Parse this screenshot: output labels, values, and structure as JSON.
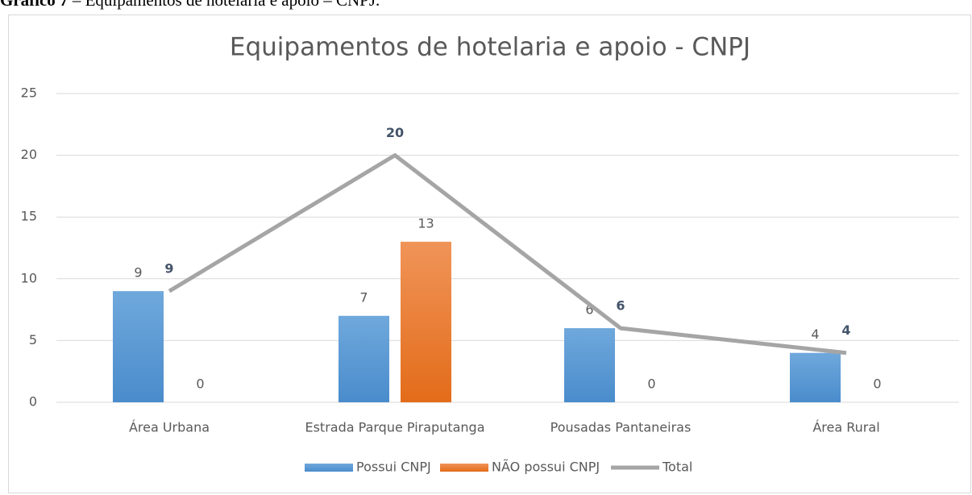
{
  "caption": {
    "label": "Gráfico 7",
    "text": "– Equipamentos de hotelaria e apoio – CNPJ."
  },
  "chart_data": {
    "type": "bar",
    "title": "Equipamentos de hotelaria e apoio - CNPJ",
    "categories": [
      "Área Urbana",
      "Estrada Parque Piraputanga",
      "Pousadas Pantaneiras",
      "Área Rural"
    ],
    "series": [
      {
        "name": "Possui CNPJ",
        "type": "bar",
        "color": "#5b9bd5",
        "values": [
          9,
          7,
          6,
          4
        ]
      },
      {
        "name": "NÃO possui CNPJ",
        "type": "bar",
        "color": "#ed7d31",
        "values": [
          0,
          13,
          0,
          0
        ]
      },
      {
        "name": "Total",
        "type": "line",
        "color": "#a5a5a5",
        "values": [
          9,
          20,
          6,
          4
        ]
      }
    ],
    "ylim": [
      0,
      25
    ],
    "yticks": [
      0,
      5,
      10,
      15,
      20,
      25
    ],
    "grid": true,
    "legend": "bottom"
  }
}
